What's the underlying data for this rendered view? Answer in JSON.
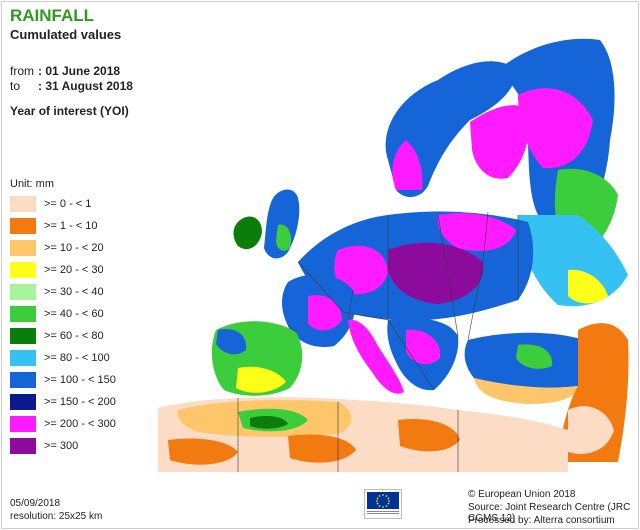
{
  "header": {
    "title": "RAINFALL",
    "subtitle": "Cumulated values",
    "from_label": "from",
    "from_value": ": 01 June 2018",
    "to_label": "to",
    "to_value": ": 31 August 2018",
    "yoi": "Year of interest (YOI)"
  },
  "legend": {
    "unit": "Unit: mm",
    "items": [
      {
        "label": ">= 0 - < 1",
        "color": "#fcdcc4"
      },
      {
        "label": ">= 1 - < 10",
        "color": "#f27a10"
      },
      {
        "label": ">= 10 - < 20",
        "color": "#fdc66a"
      },
      {
        "label": ">= 20 - < 30",
        "color": "#ffff1a"
      },
      {
        "label": ">= 30 - < 40",
        "color": "#a7f59a"
      },
      {
        "label": ">= 40 - < 60",
        "color": "#3ccd3c"
      },
      {
        "label": ">= 60 - < 80",
        "color": "#0a7d0a"
      },
      {
        "label": ">= 80 - < 100",
        "color": "#35c2f2"
      },
      {
        "label": ">= 100 - < 150",
        "color": "#1565d8"
      },
      {
        "label": ">= 150 - < 200",
        "color": "#0c1a8c"
      },
      {
        "label": ">= 200 - < 300",
        "color": "#ff1aff"
      },
      {
        "label": ">= 300",
        "color": "#8c0a9c"
      }
    ]
  },
  "footer": {
    "date": "05/09/2018",
    "resolution": "resolution: 25x25 km",
    "copyright": "© European Union 2018",
    "source": "Source: Joint Research Centre (JRC CGMS 12)",
    "processed": "Processed by: Alterra consortium"
  },
  "map": {
    "sea_color": "#ffffff",
    "border_color": "#3a3a3a",
    "no_data_color": "#f4f0ec"
  }
}
